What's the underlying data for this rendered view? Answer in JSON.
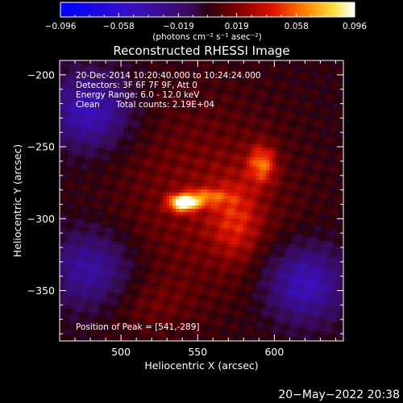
{
  "chart_data": {
    "type": "heatmap",
    "title": "Reconstructed RHESSI Image",
    "xlabel": "Heliocentric X (arcsec)",
    "ylabel": "Heliocentric Y (arcsec)",
    "xlim": [
      460,
      645
    ],
    "ylim": [
      -385,
      -190
    ],
    "x_ticks": [
      "500",
      "550",
      "600"
    ],
    "x_tick_values": [
      500,
      550,
      600
    ],
    "y_ticks": [
      "−200",
      "−250",
      "−300",
      "−350"
    ],
    "y_tick_values": [
      -200,
      -250,
      -300,
      -350
    ],
    "colorbar": {
      "range": [
        -0.096,
        0.096
      ],
      "tick_labels": [
        "−0.096",
        "−0.058",
        "−0.019",
        "0.019",
        "0.058",
        "0.096"
      ],
      "tick_values": [
        -0.096,
        -0.058,
        -0.019,
        0.019,
        0.058,
        0.096
      ],
      "units_label": "(photons cm⁻² s⁻¹ asec⁻²)",
      "colormap": "blue-purple-red-yellow-white"
    },
    "annotations": {
      "time_range": "20-Dec-2014 10:20:40.000 to 10:24:24.000",
      "detectors": "Detectors: 3F 6F 7F 9F, Att 0",
      "energy": "Energy Range: 6.0 - 12.0 keV",
      "method": "Clean",
      "counts": "Total counts: 2.19E+04",
      "peak": "Position of Peak = [541,-289]"
    },
    "peak": {
      "x": 541,
      "y": -289,
      "value": 0.096
    },
    "sources": [
      {
        "x": 541,
        "y": -289,
        "value": 0.096
      },
      {
        "x": 592,
        "y": -262,
        "value": 0.045
      }
    ],
    "negative_regions": [
      {
        "x": 480,
        "y": -225,
        "value": -0.03
      },
      {
        "x": 480,
        "y": -335,
        "value": -0.025
      },
      {
        "x": 620,
        "y": -345,
        "value": -0.03
      }
    ]
  },
  "footer": {
    "date": "20−May−2022 20:38"
  },
  "colors": {
    "background": "#000000",
    "foreground": "#ffffff"
  }
}
